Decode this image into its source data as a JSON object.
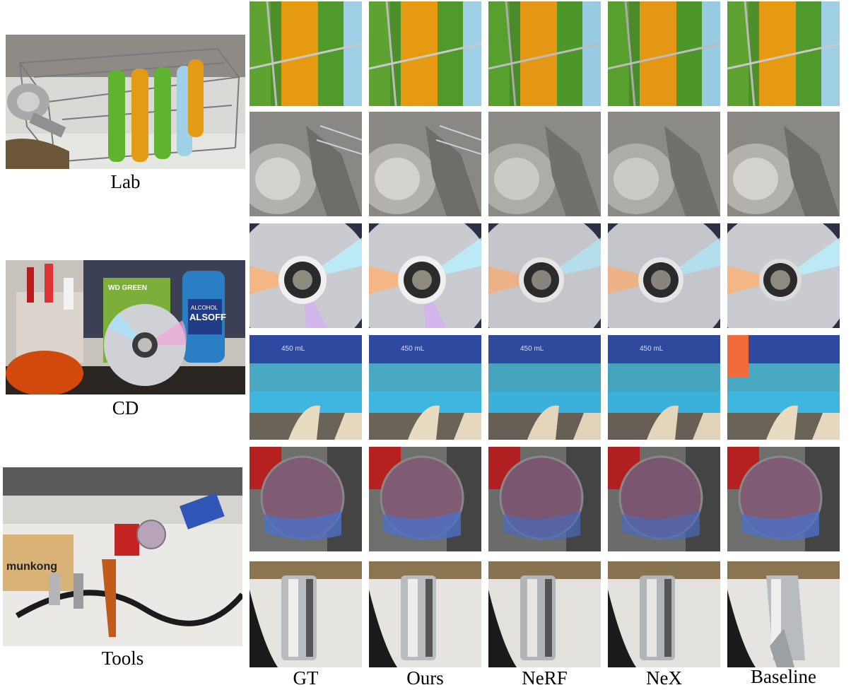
{
  "scenes": [
    {
      "key": "lab",
      "label": "Lab"
    },
    {
      "key": "cd",
      "label": "CD"
    },
    {
      "key": "tools",
      "label": "Tools"
    }
  ],
  "columns": [
    "GT",
    "Ours",
    "NeRF",
    "NeX",
    "Baseline"
  ],
  "scene_text": {
    "cd_package_brand": "WD GREEN",
    "cd_bottle_brand": "ALCOHOL",
    "cd_bottle_name": "ALSOFF",
    "bottle_volume": "450 mL",
    "tools_box_brand": "munkong"
  }
}
